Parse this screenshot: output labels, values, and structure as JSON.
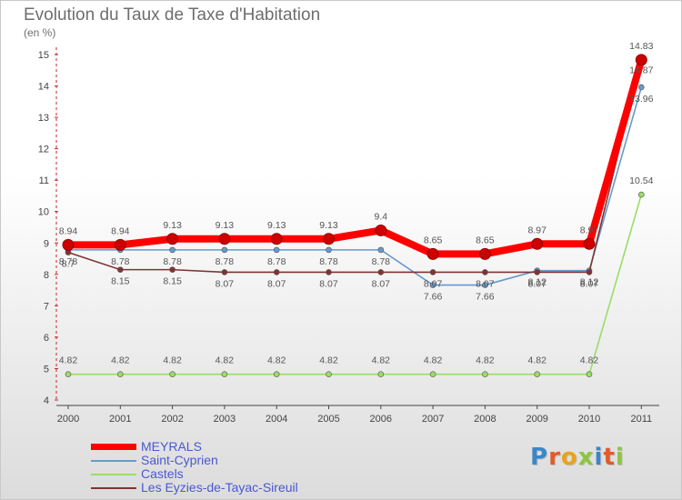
{
  "brand": {
    "letters": [
      {
        "ch": "P",
        "color": "#3a86c8"
      },
      {
        "ch": "r",
        "color": "#e35b2a"
      },
      {
        "ch": "o",
        "color": "#e9a31a"
      },
      {
        "ch": "x",
        "color": "#8cc63f"
      },
      {
        "ch": "i",
        "color": "#3a86c8"
      },
      {
        "ch": "t",
        "color": "#e35b2a"
      },
      {
        "ch": "i",
        "color": "#8cc63f"
      }
    ]
  },
  "chart_data": {
    "type": "line",
    "title": "Evolution du Taux de Taxe d'Habitation",
    "subtitle": "(en %)",
    "xlabel": "",
    "ylabel": "",
    "categories": [
      "2000",
      "2001",
      "2002",
      "2003",
      "2004",
      "2005",
      "2006",
      "2007",
      "2008",
      "2009",
      "2010",
      "2011"
    ],
    "ylim": [
      4,
      15
    ],
    "yticks": [
      "4",
      "5",
      "6",
      "7",
      "8",
      "9",
      "10",
      "11",
      "12",
      "13",
      "14",
      "15"
    ],
    "grid": false,
    "legend_position": "bottom-left",
    "series": [
      {
        "name": "MEYRALS",
        "color": "#ff0000",
        "values": [
          8.94,
          8.94,
          9.13,
          9.13,
          9.13,
          9.13,
          9.4,
          8.65,
          8.65,
          8.97,
          8.97,
          14.83
        ],
        "labels": [
          "8.94",
          "8.94",
          "9.13",
          "9.13",
          "9.13",
          "9.13",
          "9.4",
          "8.65",
          "8.65",
          "8.97",
          "8.97",
          "14.83"
        ]
      },
      {
        "name": "Saint-Cyprien",
        "color": "#6699cc",
        "values": [
          8.78,
          8.78,
          8.78,
          8.78,
          8.78,
          8.78,
          8.78,
          7.66,
          7.66,
          8.12,
          8.12,
          13.96
        ],
        "labels": [
          "8.78",
          "8.78",
          "8.78",
          "8.78",
          "8.78",
          "8.78",
          "8.78",
          "7.66",
          "7.66",
          "8.12",
          "8.12",
          "13.96"
        ]
      },
      {
        "name": "Castels",
        "color": "#99dd66",
        "values": [
          4.82,
          4.82,
          4.82,
          4.82,
          4.82,
          4.82,
          4.82,
          4.82,
          4.82,
          4.82,
          4.82,
          10.54
        ],
        "labels": [
          "4.82",
          "4.82",
          "4.82",
          "4.82",
          "4.82",
          "4.82",
          "4.82",
          "4.82",
          "4.82",
          "4.82",
          "4.82",
          "10.54"
        ]
      },
      {
        "name": "Les Eyzies-de-Tayac-Sireuil",
        "color": "#803333",
        "values": [
          8.7,
          8.15,
          8.15,
          8.07,
          8.07,
          8.07,
          8.07,
          8.07,
          8.07,
          8.07,
          8.07,
          14.87
        ],
        "labels": [
          "8.7",
          "8.15",
          "8.15",
          "8.07",
          "8.07",
          "8.07",
          "8.07",
          "8.07",
          "8.07",
          "8.07",
          "8.07",
          "14.87"
        ]
      }
    ]
  }
}
